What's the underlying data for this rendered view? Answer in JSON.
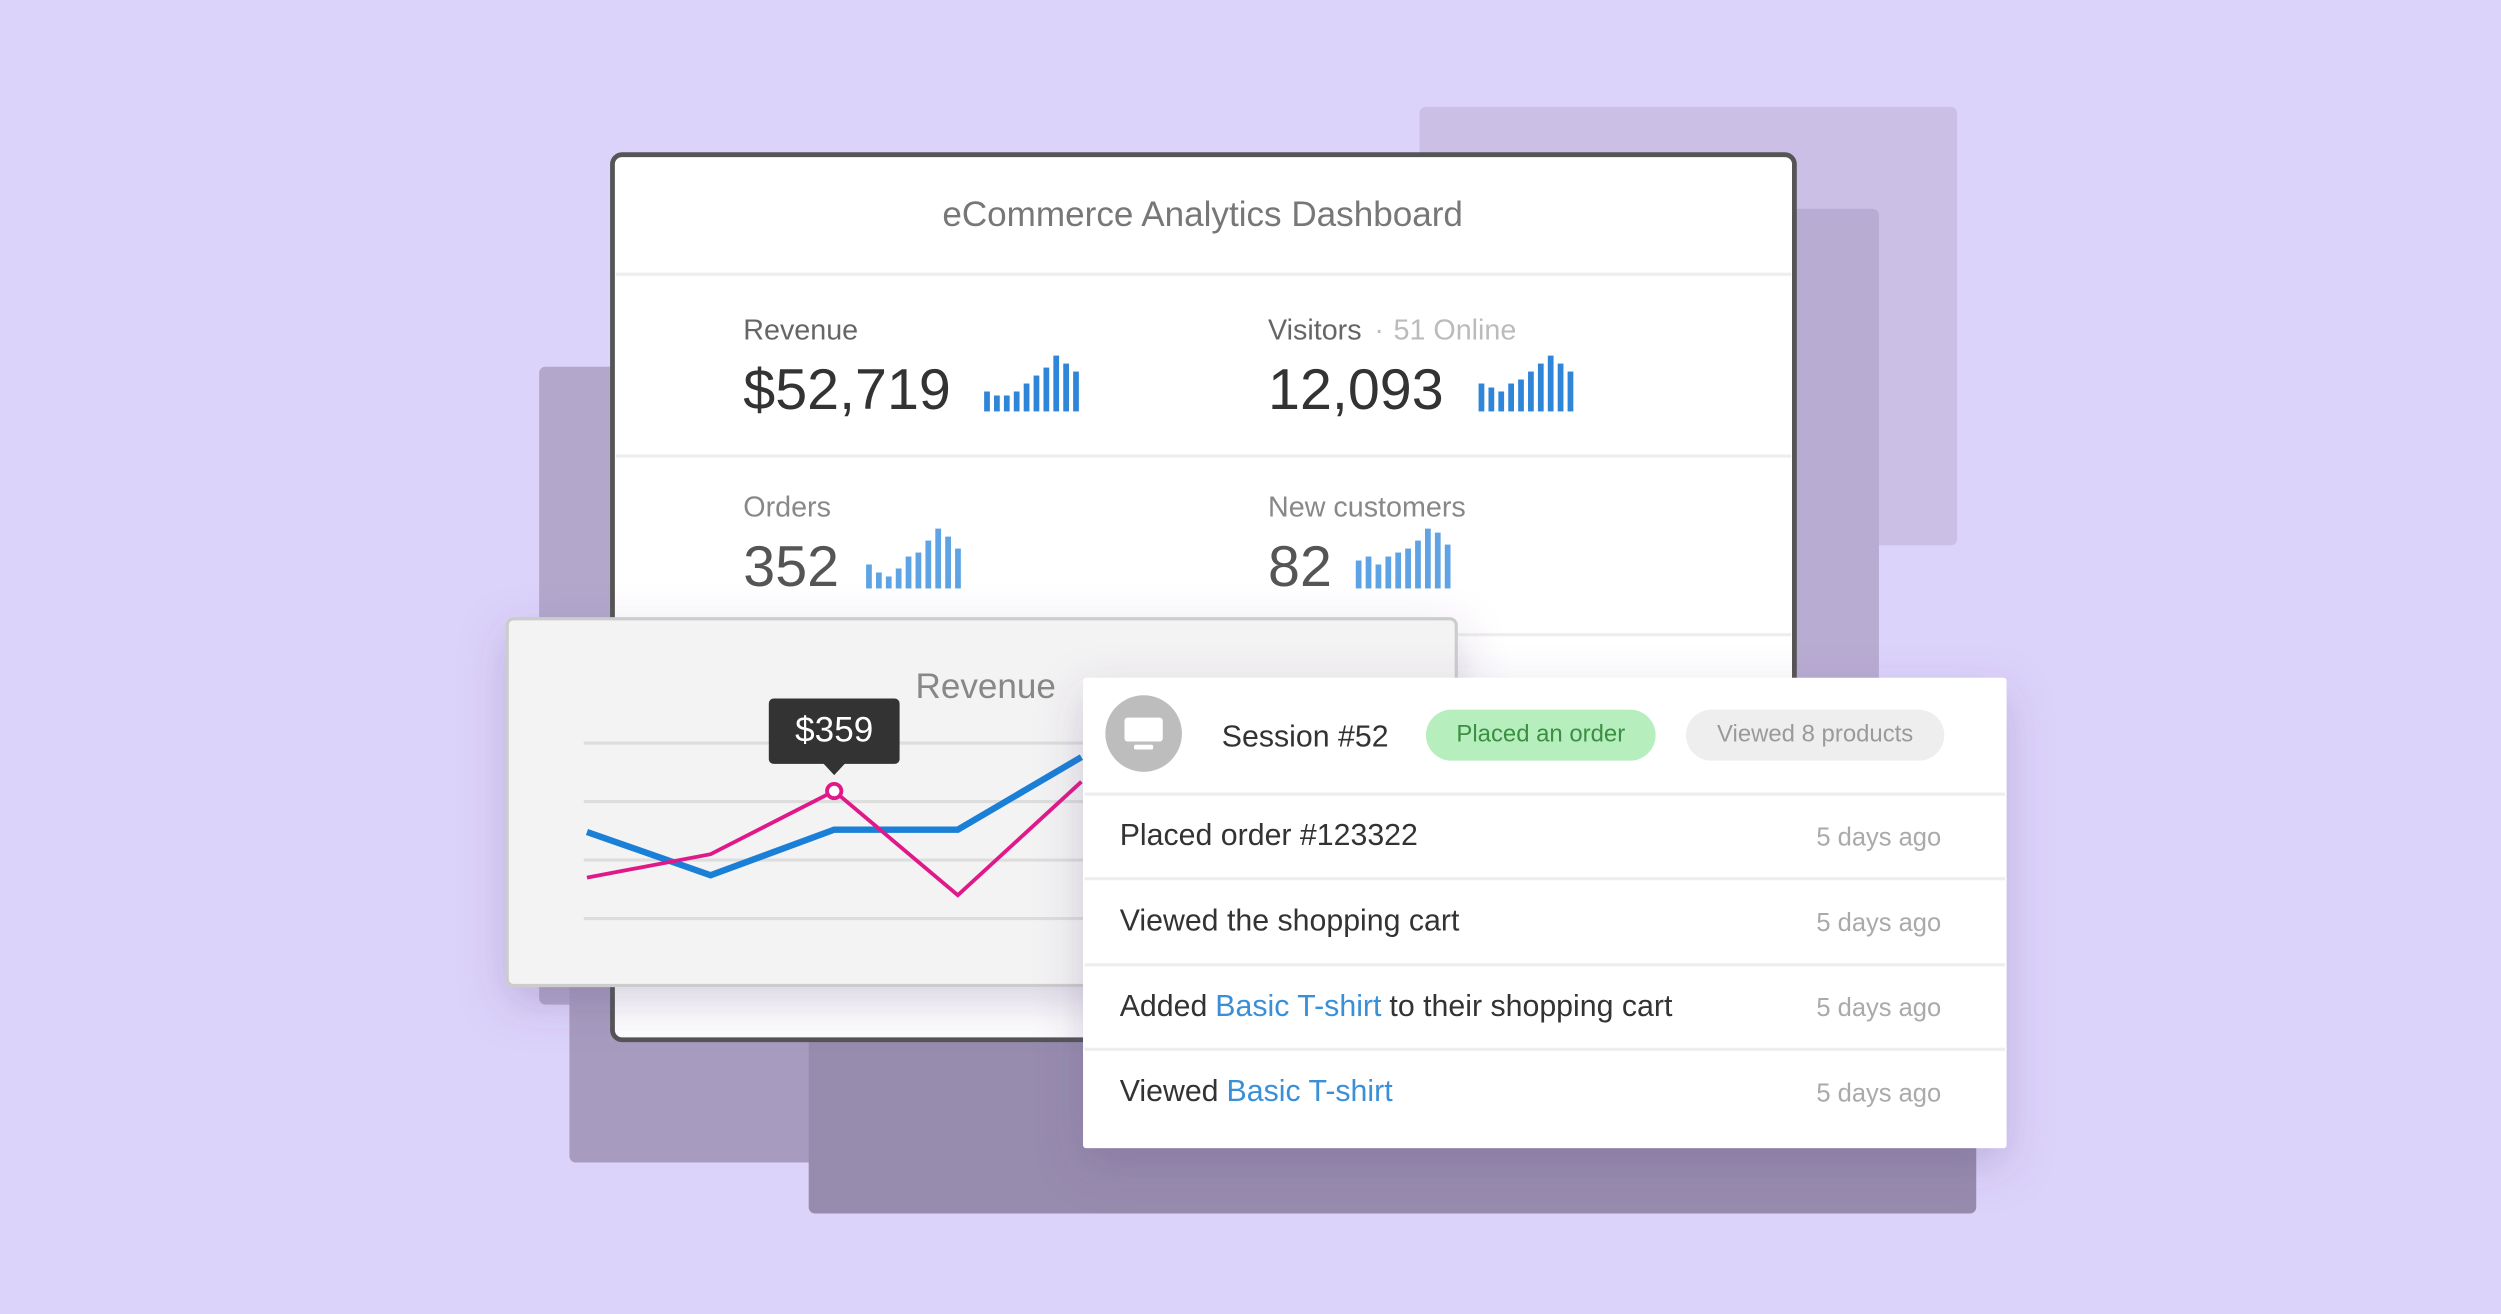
{
  "dashboard": {
    "title": "eCommerce Analytics Dashboard",
    "metrics": [
      {
        "label": "Revenue",
        "value": "$52,719",
        "color": "#2f86d8",
        "spark": [
          5,
          4,
          4,
          5,
          7,
          9,
          11,
          14,
          12,
          10
        ]
      },
      {
        "label": "Visitors",
        "separator": "·",
        "note": "51 Online",
        "value": "12,093",
        "color": "#2f86d8",
        "spark": [
          7,
          6,
          5,
          7,
          8,
          10,
          12,
          14,
          12,
          10
        ]
      },
      {
        "label": "Orders",
        "value": "352",
        "color": "#5ea3e3",
        "spark": [
          6,
          4,
          3,
          5,
          8,
          9,
          12,
          15,
          13,
          10
        ]
      },
      {
        "label": "New customers",
        "value": "82",
        "color": "#5ea3e3",
        "spark": [
          7,
          8,
          6,
          8,
          9,
          10,
          12,
          15,
          14,
          11
        ]
      }
    ]
  },
  "revenue_chart": {
    "type": "line",
    "title": "Revenue",
    "tooltip": "$359",
    "tooltip_point": [
      1,
      2
    ],
    "series": [
      {
        "color": "#1a7fd6",
        "values": [
          324,
          287,
          326,
          326,
          388
        ]
      },
      {
        "color": "#e0198a",
        "values": [
          285,
          305,
          359,
          270,
          367
        ]
      }
    ],
    "ylim": [
      230,
      420
    ],
    "yticks": [
      250,
      300,
      350,
      400
    ],
    "grid": true
  },
  "session": {
    "title": "Session #52",
    "tags": [
      {
        "text": "Placed an order",
        "fill": "#b6eebd",
        "color": "#3b8f43"
      },
      {
        "text": "Viewed 8 products",
        "fill": "#eeeeee",
        "color": "#9a9a9a"
      }
    ],
    "events": [
      {
        "parts": [
          {
            "text": "Placed order #123322"
          }
        ],
        "time": "5 days ago"
      },
      {
        "parts": [
          {
            "text": "Viewed the shopping cart"
          }
        ],
        "time": "5 days ago"
      },
      {
        "parts": [
          {
            "text": "Added"
          },
          {
            "text": "Basic T-shirt",
            "link": true
          },
          {
            "text": "to their shopping cart"
          }
        ],
        "time": "5 days ago"
      },
      {
        "parts": [
          {
            "text": "Viewed"
          },
          {
            "text": "Basic T-shirt",
            "link": true
          }
        ],
        "time": "5 days ago"
      }
    ]
  }
}
